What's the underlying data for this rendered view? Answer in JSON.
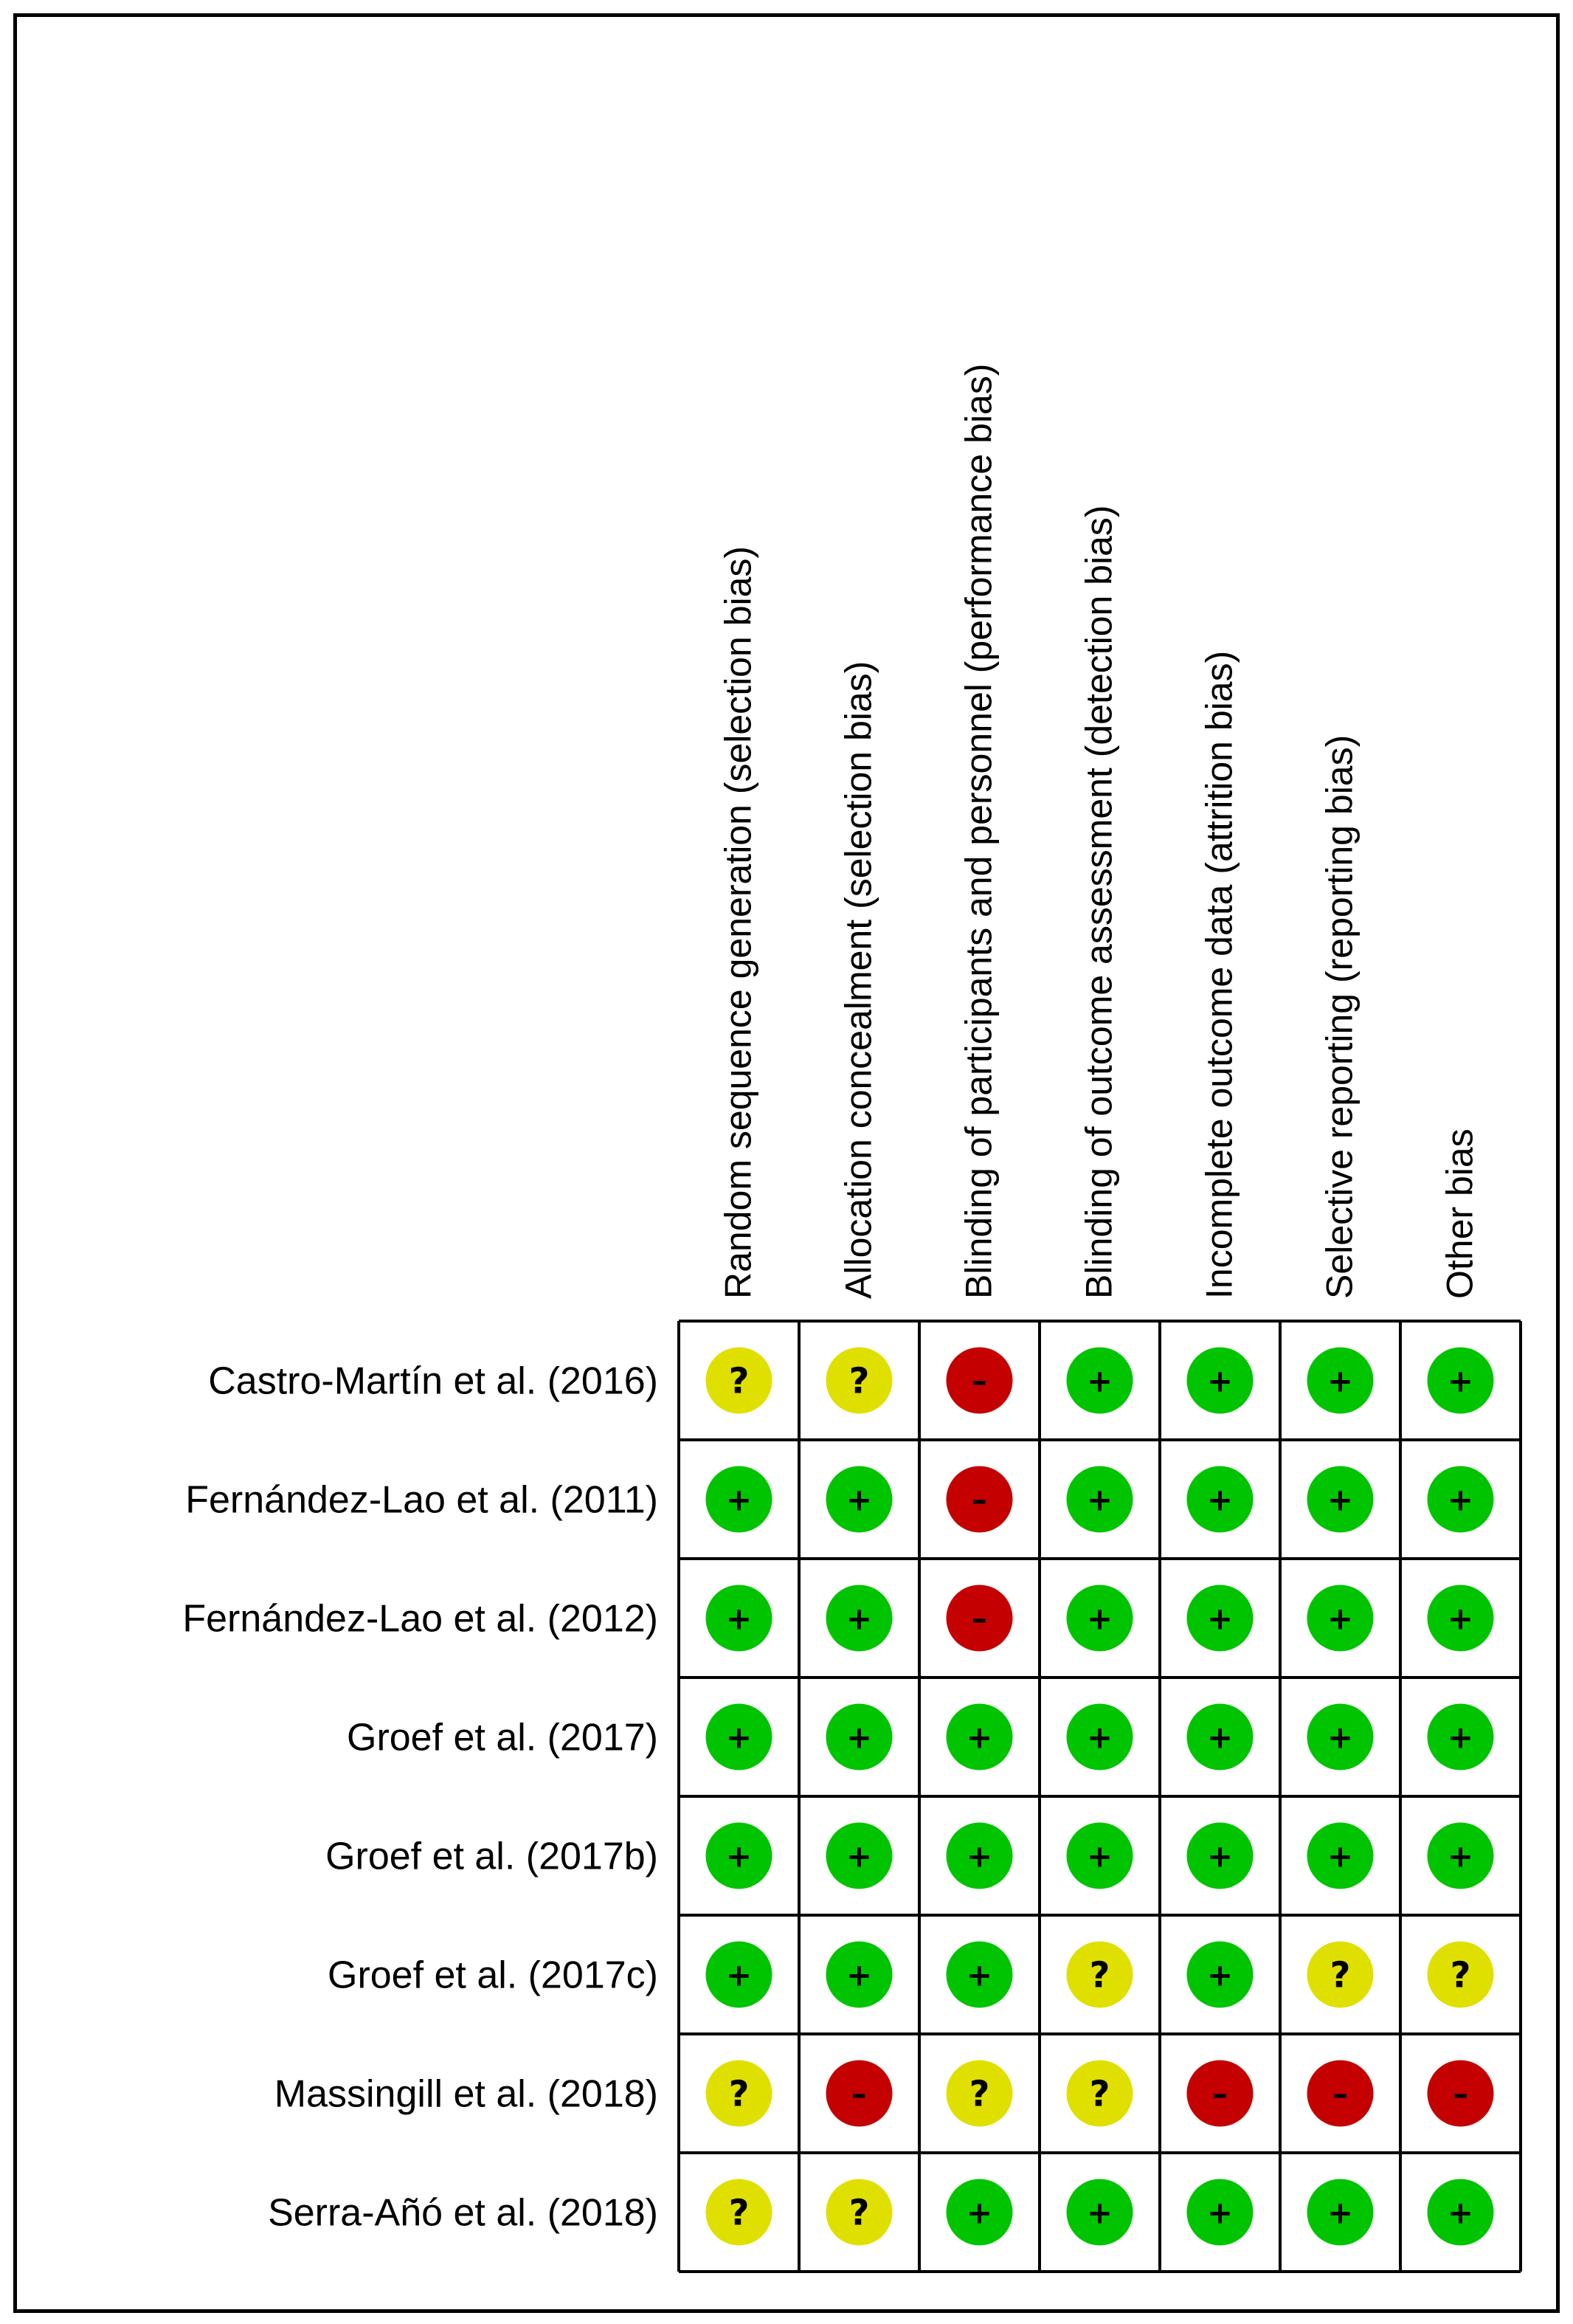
{
  "chart_data": {
    "type": "table",
    "domains": [
      "Random sequence generation (selection bias)",
      "Allocation concealment (selection bias)",
      "Blinding of participants and personnel (performance bias)",
      "Blinding of outcome assessment (detection bias)",
      "Incomplete outcome data (attrition bias)",
      "Selective reporting (reporting bias)",
      "Other bias"
    ],
    "studies": [
      "Castro-Martín et al. (2016)",
      "Fernández-Lao et al. (2011)",
      "Fernández-Lao et al. (2012)",
      "Groef et al. (2017)",
      "Groef et al. (2017b)",
      "Groef et al. (2017c)",
      "Massingill et al. (2018)",
      "Serra-Añó et al. (2018)"
    ],
    "judgements": [
      [
        "unclear",
        "unclear",
        "high",
        "low",
        "low",
        "low",
        "low"
      ],
      [
        "low",
        "low",
        "high",
        "low",
        "low",
        "low",
        "low"
      ],
      [
        "low",
        "low",
        "high",
        "low",
        "low",
        "low",
        "low"
      ],
      [
        "low",
        "low",
        "low",
        "low",
        "low",
        "low",
        "low"
      ],
      [
        "low",
        "low",
        "low",
        "low",
        "low",
        "low",
        "low"
      ],
      [
        "low",
        "low",
        "low",
        "unclear",
        "low",
        "unclear",
        "unclear"
      ],
      [
        "unclear",
        "high",
        "unclear",
        "unclear",
        "high",
        "high",
        "high"
      ],
      [
        "unclear",
        "unclear",
        "low",
        "low",
        "low",
        "low",
        "low"
      ]
    ],
    "symbols": {
      "low": "+",
      "unclear": "?",
      "high": "–"
    },
    "colors": {
      "low": "#00c400",
      "unclear": "#e0e000",
      "high": "#c40000",
      "border": "#000000",
      "text": "#000000"
    }
  }
}
